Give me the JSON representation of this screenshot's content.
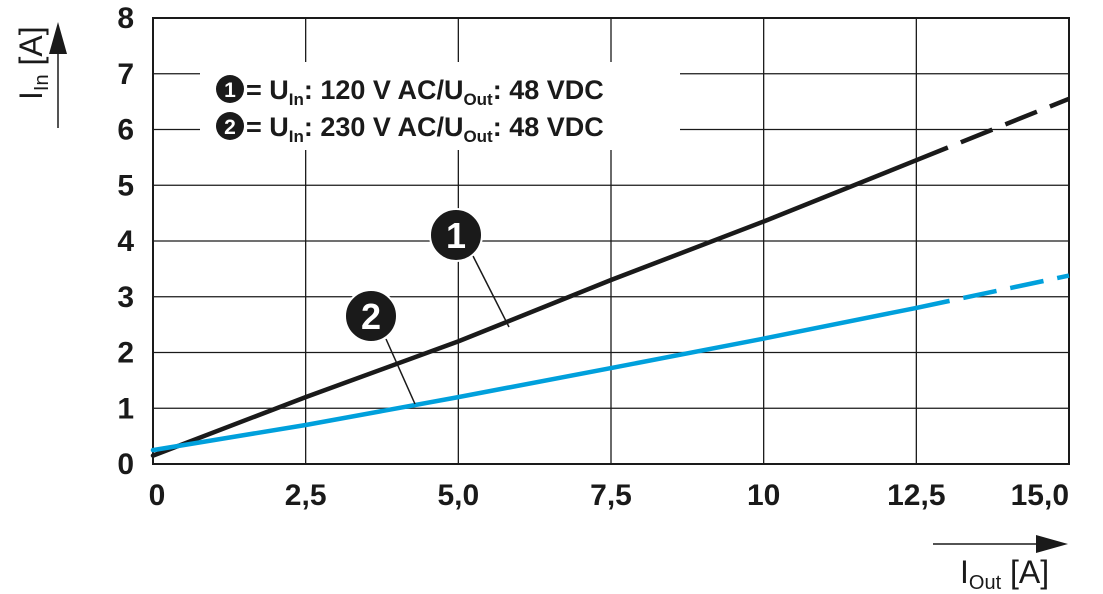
{
  "chart_data": {
    "type": "line",
    "x_axis": {
      "label_main": "I",
      "label_sub": "Out",
      "label_unit": " [A]",
      "ticks": [
        {
          "value": 0,
          "label": "0"
        },
        {
          "value": 2.5,
          "label": "2,5"
        },
        {
          "value": 5,
          "label": "5,0"
        },
        {
          "value": 7.5,
          "label": "7,5"
        },
        {
          "value": 10,
          "label": "10"
        },
        {
          "value": 12.5,
          "label": "12,5"
        },
        {
          "value": 15,
          "label": "15,0"
        }
      ],
      "range": [
        0,
        15
      ]
    },
    "y_axis": {
      "label_main": "I",
      "label_sub": "In",
      "label_unit": " [A]",
      "ticks": [
        {
          "value": 0,
          "label": "0"
        },
        {
          "value": 1,
          "label": "1"
        },
        {
          "value": 2,
          "label": "2"
        },
        {
          "value": 3,
          "label": "3"
        },
        {
          "value": 4,
          "label": "4"
        },
        {
          "value": 5,
          "label": "5"
        },
        {
          "value": 6,
          "label": "6"
        },
        {
          "value": 7,
          "label": "7"
        },
        {
          "value": 8,
          "label": "8"
        }
      ],
      "range": [
        0,
        8
      ]
    },
    "grid": true,
    "legend": {
      "placement": "top-left",
      "entries": [
        {
          "marker": "1",
          "parts": [
            {
              "t": " = U",
              "sub": false
            },
            {
              "t": "In",
              "sub": true
            },
            {
              "t": ": 120 V AC/U",
              "sub": false
            },
            {
              "t": "Out",
              "sub": true
            },
            {
              "t": ": 48 VDC",
              "sub": false
            }
          ]
        },
        {
          "marker": "2",
          "parts": [
            {
              "t": " = U",
              "sub": false
            },
            {
              "t": "In",
              "sub": true
            },
            {
              "t": ": 230 V AC/U",
              "sub": false
            },
            {
              "t": "Out",
              "sub": true
            },
            {
              "t": ": 48 VDC",
              "sub": false
            }
          ]
        }
      ]
    },
    "series": [
      {
        "marker": "1",
        "color": "#1a1a1a",
        "solid": [
          [
            0,
            0.15
          ],
          [
            2.5,
            1.2
          ],
          [
            5,
            2.2
          ],
          [
            7.5,
            3.3
          ],
          [
            10,
            4.35
          ],
          [
            12.5,
            5.45
          ]
        ],
        "dashed": [
          [
            12.5,
            5.45
          ],
          [
            15,
            6.55
          ]
        ]
      },
      {
        "marker": "2",
        "color": "#00a0dc",
        "solid": [
          [
            0,
            0.25
          ],
          [
            2.5,
            0.7
          ],
          [
            5,
            1.2
          ],
          [
            7.5,
            1.72
          ],
          [
            10,
            2.25
          ],
          [
            12.5,
            2.8
          ]
        ],
        "dashed": [
          [
            12.5,
            2.8
          ],
          [
            15,
            3.38
          ]
        ]
      }
    ]
  }
}
